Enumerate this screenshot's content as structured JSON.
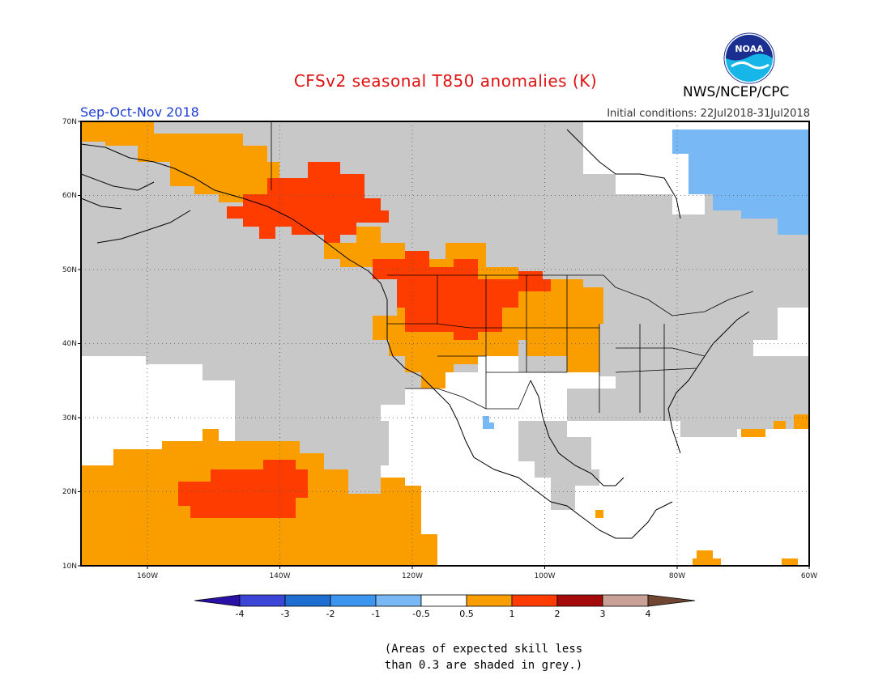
{
  "header": {
    "title": "CFSv2 seasonal T850 anomalies (K)",
    "organization": "NWS/NCEP/CPC",
    "logo_text": "NOAA",
    "season": "Sep-Oct-Nov 2018",
    "initial_conditions": "Initial conditions: 22Jul2018-31Jul2018"
  },
  "map": {
    "lon_range": [
      -175,
      -60
    ],
    "lat_range": [
      10,
      70
    ],
    "lat_ticks": [
      "70N",
      "60N",
      "50N",
      "40N",
      "30N",
      "20N",
      "10N"
    ],
    "lon_ticks": [
      "160W",
      "140W",
      "120W",
      "100W",
      "80W",
      "60W"
    ],
    "grid": true,
    "skill_mask_color": "#c8c8c8",
    "region_colors": {
      "weak_cold": "#78b9f5",
      "warm_0_5_1": "#fa9e00",
      "warm_1_2": "#ff3c00",
      "grey_low_skill": "#c8c8c8",
      "near_zero": "#ffffff"
    }
  },
  "colorbar": {
    "labels": [
      "-4",
      "-3",
      "-2",
      "-1",
      "-0.5",
      "0.5",
      "1",
      "2",
      "3",
      "4"
    ],
    "colors": [
      "#2a10a6",
      "#3c46d6",
      "#1e6ed2",
      "#3c96f0",
      "#78b9f5",
      "#ffffff",
      "#fa9e00",
      "#ff3c00",
      "#a50a0a",
      "#c8a096",
      "#6e4632"
    ]
  },
  "note": {
    "line1": "(Areas of expected skill less",
    "line2": "than 0.3 are shaded in grey.)"
  }
}
